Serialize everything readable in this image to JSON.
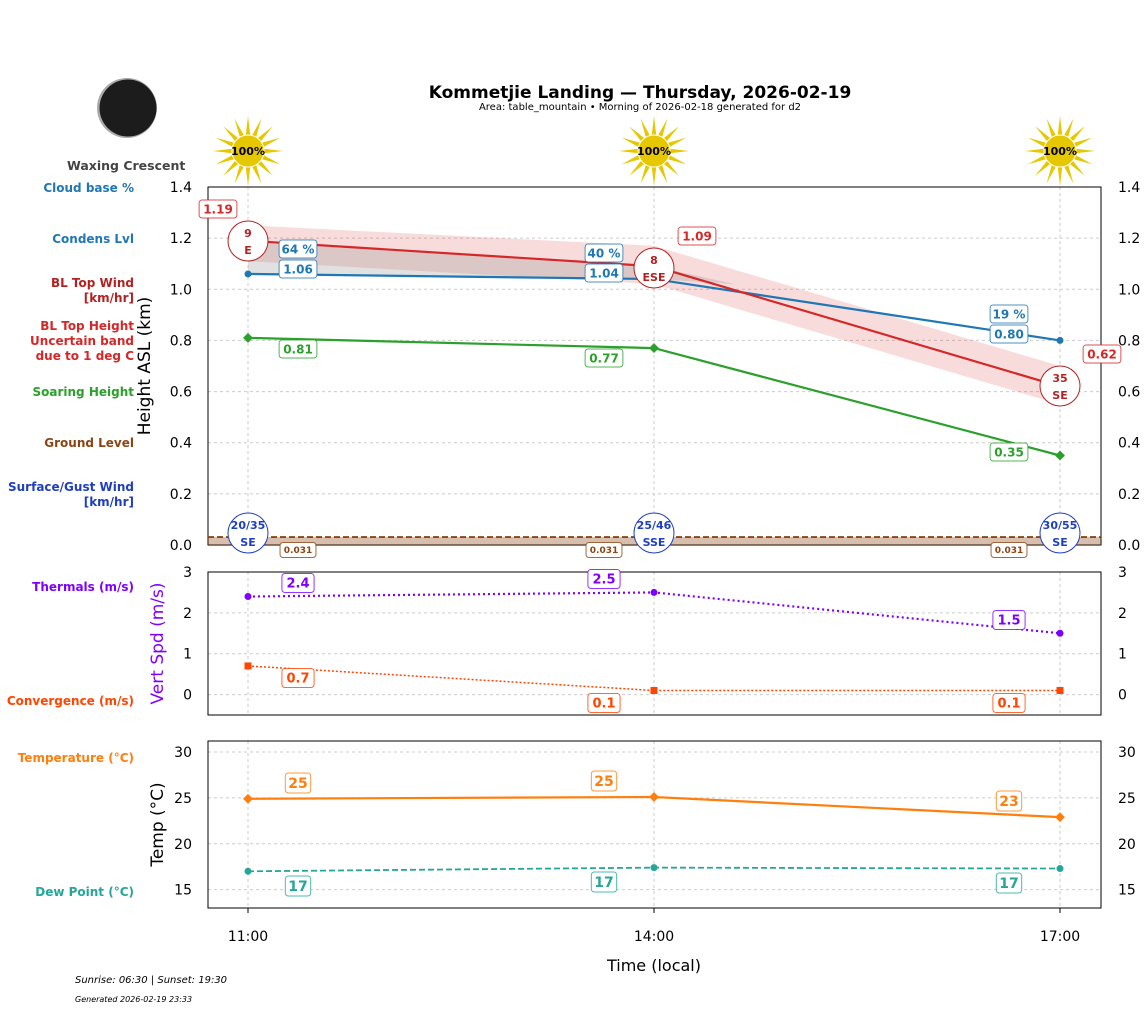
{
  "title": "Kommetjie Landing — Thursday, 2026-02-19",
  "subtitle": "Area: table_mountain • Morning of 2026-02-18 generated for d2",
  "moon_phase": "Waxing Crescent",
  "footer": {
    "sun": "Sunrise: 06:30 | Sunset: 19:30",
    "generated": "Generated 2026-02-19 23:33"
  },
  "chart_data": [
    {
      "type": "line",
      "ylabel": "Height ASL (km)",
      "ylim": [
        0,
        1.4
      ],
      "yticks": [
        "0.0",
        "0.2",
        "0.4",
        "0.6",
        "0.8",
        "1.0",
        "1.2",
        "1.4"
      ],
      "grid": true,
      "x": [
        "11:00",
        "14:00",
        "17:00"
      ],
      "sun_percent": [
        "100%",
        "100%",
        "100%"
      ],
      "row_labels": {
        "cloud_base": "Cloud base %",
        "condens": "Condens Lvl",
        "bl_wind": "BL Top Wind [km/hr]",
        "bl_band": "BL Top Height Uncertain band due to 1 deg C",
        "soaring": "Soaring Height",
        "ground": "Ground Level",
        "surface_wind": "Surface/Gust Wind [km/hr]"
      },
      "series": {
        "bl_top": {
          "values": [
            1.19,
            1.09,
            0.62
          ],
          "labels": [
            "1.19",
            "1.09",
            "0.62"
          ],
          "band_low": [
            1.11,
            1.02,
            0.55
          ],
          "band_high": [
            1.25,
            1.17,
            0.7
          ],
          "color": "#d62728"
        },
        "condens": {
          "values": [
            1.06,
            1.04,
            0.8
          ],
          "labels": [
            "1.06",
            "1.04",
            "0.80"
          ],
          "color": "#1f77b4"
        },
        "cloud_base_pct": {
          "labels": [
            "64 %",
            "40 %",
            "19 %"
          ]
        },
        "soaring": {
          "values": [
            0.81,
            0.77,
            0.35
          ],
          "labels": [
            "0.81",
            "0.77",
            "0.35"
          ],
          "color": "#2ca02c"
        },
        "ground": {
          "values": [
            0.031,
            0.031,
            0.031
          ],
          "labels": [
            "0.031",
            "0.031",
            "0.031"
          ],
          "color": "#8b4513"
        }
      },
      "bl_wind": [
        {
          "speed": "9",
          "dir": "E"
        },
        {
          "speed": "8",
          "dir": "ESE"
        },
        {
          "speed": "35",
          "dir": "SE"
        }
      ],
      "surface_wind": [
        {
          "speed": "20/35",
          "dir": "SE"
        },
        {
          "speed": "25/46",
          "dir": "SSE"
        },
        {
          "speed": "30/55",
          "dir": "SE"
        }
      ]
    },
    {
      "type": "line",
      "ylabel": "Vert Spd (m/s)",
      "ylim": [
        -0.5,
        3
      ],
      "yticks": [
        "0",
        "1",
        "2",
        "3"
      ],
      "x": [
        "11:00",
        "14:00",
        "17:00"
      ],
      "series": [
        {
          "name": "Thermals (m/s)",
          "values": [
            2.4,
            2.5,
            1.5
          ],
          "labels": [
            "2.4",
            "2.5",
            "1.5"
          ],
          "color": "#8000ff"
        },
        {
          "name": "Convergence (m/s)",
          "values": [
            0.7,
            0.1,
            0.1
          ],
          "labels": [
            "0.7",
            "0.1",
            "0.1"
          ],
          "color": "#ff4500"
        }
      ]
    },
    {
      "type": "line",
      "ylabel": "Temp (°C)",
      "xlabel": "Time (local)",
      "ylim": [
        13,
        31.2
      ],
      "yticks": [
        "15",
        "20",
        "25",
        "30"
      ],
      "x": [
        "11:00",
        "14:00",
        "17:00"
      ],
      "series": [
        {
          "name": "Temperature (°C)",
          "values": [
            24.9,
            25.1,
            22.9
          ],
          "labels": [
            "25",
            "25",
            "23"
          ],
          "color": "#ff7f0e"
        },
        {
          "name": "Dew Point (°C)",
          "values": [
            17.0,
            17.4,
            17.3
          ],
          "labels": [
            "17",
            "17",
            "17"
          ],
          "color": "#26a69a"
        }
      ]
    }
  ]
}
